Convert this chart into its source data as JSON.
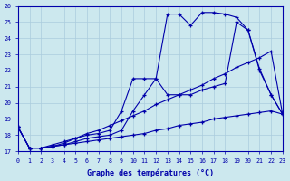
{
  "xlabel": "Graphe des températures (°C)",
  "background_color": "#cce8ee",
  "grid_color": "#aaccdd",
  "line_color": "#0000aa",
  "xlim": [
    0,
    23
  ],
  "ylim": [
    17,
    26
  ],
  "xticks": [
    0,
    1,
    2,
    3,
    4,
    5,
    6,
    7,
    8,
    9,
    10,
    11,
    12,
    13,
    14,
    15,
    16,
    17,
    18,
    19,
    20,
    21,
    22,
    23
  ],
  "yticks": [
    17,
    18,
    19,
    20,
    21,
    22,
    23,
    24,
    25,
    26
  ],
  "series": [
    {
      "x": [
        0,
        1,
        2,
        3,
        4,
        5,
        6,
        7,
        8,
        9,
        10,
        11,
        12,
        13,
        14,
        15,
        16,
        17,
        18,
        19,
        20,
        21,
        22,
        23
      ],
      "y": [
        18.5,
        17.2,
        17.2,
        17.3,
        17.5,
        17.8,
        18.0,
        18.1,
        18.3,
        19.5,
        21.5,
        21.5,
        21.5,
        25.5,
        25.5,
        24.8,
        25.6,
        25.6,
        25.5,
        25.3,
        24.5,
        22.0,
        20.5,
        19.3
      ]
    },
    {
      "x": [
        0,
        1,
        2,
        3,
        4,
        5,
        6,
        7,
        8,
        9,
        10,
        11,
        12,
        13,
        14,
        15,
        16,
        17,
        18,
        19,
        20,
        21,
        22,
        23
      ],
      "y": [
        18.5,
        17.2,
        17.2,
        17.3,
        17.4,
        17.6,
        17.8,
        17.9,
        18.0,
        18.3,
        19.5,
        20.5,
        21.5,
        20.5,
        20.5,
        20.5,
        20.8,
        21.0,
        21.2,
        25.0,
        24.5,
        22.1,
        20.5,
        19.3
      ]
    },
    {
      "x": [
        0,
        1,
        2,
        3,
        4,
        5,
        6,
        7,
        8,
        9,
        10,
        11,
        12,
        13,
        14,
        15,
        16,
        17,
        18,
        19,
        20,
        21,
        22,
        23
      ],
      "y": [
        18.5,
        17.2,
        17.2,
        17.4,
        17.6,
        17.8,
        18.1,
        18.3,
        18.6,
        18.9,
        19.2,
        19.5,
        19.9,
        20.2,
        20.5,
        20.8,
        21.1,
        21.5,
        21.8,
        22.2,
        22.5,
        22.8,
        23.2,
        19.3
      ]
    },
    {
      "x": [
        0,
        1,
        2,
        3,
        4,
        5,
        6,
        7,
        8,
        9,
        10,
        11,
        12,
        13,
        14,
        15,
        16,
        17,
        18,
        19,
        20,
        21,
        22,
        23
      ],
      "y": [
        18.5,
        17.2,
        17.2,
        17.3,
        17.4,
        17.5,
        17.6,
        17.7,
        17.8,
        17.9,
        18.0,
        18.1,
        18.3,
        18.4,
        18.6,
        18.7,
        18.8,
        19.0,
        19.1,
        19.2,
        19.3,
        19.4,
        19.5,
        19.3
      ]
    }
  ]
}
